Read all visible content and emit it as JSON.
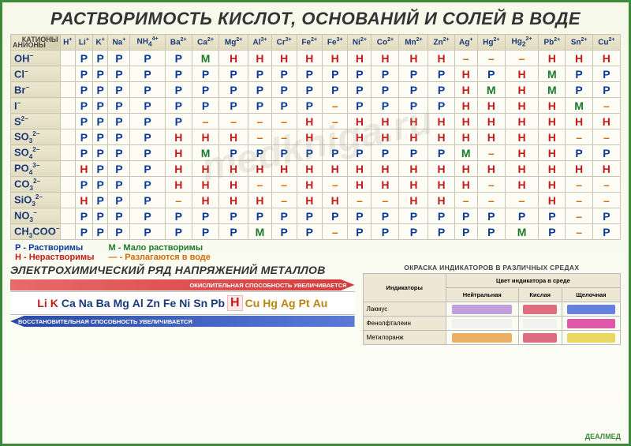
{
  "title": "РАСТВОРИМОСТЬ КИСЛОТ, ОСНОВАНИЙ И СОЛЕЙ В ВОДЕ",
  "corner": {
    "cations": "КАТИОНЫ",
    "anions": "АНИОНЫ"
  },
  "cations": [
    {
      "l": "H",
      "c": "+"
    },
    {
      "l": "Li",
      "c": "+"
    },
    {
      "l": "K",
      "c": "+"
    },
    {
      "l": "Na",
      "c": "+"
    },
    {
      "l": "NH",
      "c": "4+",
      "sub": "4"
    },
    {
      "l": "Ba",
      "c": "2+"
    },
    {
      "l": "Ca",
      "c": "2+"
    },
    {
      "l": "Mg",
      "c": "2+"
    },
    {
      "l": "Al",
      "c": "3+"
    },
    {
      "l": "Cr",
      "c": "3+"
    },
    {
      "l": "Fe",
      "c": "2+"
    },
    {
      "l": "Fe",
      "c": "3+"
    },
    {
      "l": "Ni",
      "c": "2+"
    },
    {
      "l": "Co",
      "c": "2+"
    },
    {
      "l": "Mn",
      "c": "2+"
    },
    {
      "l": "Zn",
      "c": "2+"
    },
    {
      "l": "Ag",
      "c": "+"
    },
    {
      "l": "Hg",
      "c": "2+"
    },
    {
      "l": "Hg",
      "c": "2+",
      "sub": "2"
    },
    {
      "l": "Pb",
      "c": "2+"
    },
    {
      "l": "Sn",
      "c": "2+"
    },
    {
      "l": "Cu",
      "c": "2+"
    }
  ],
  "anions": [
    {
      "l": "OH",
      "c": "−"
    },
    {
      "l": "Cl",
      "c": "−"
    },
    {
      "l": "Br",
      "c": "−"
    },
    {
      "l": "I",
      "c": "−"
    },
    {
      "l": "S",
      "c": "2−"
    },
    {
      "l": "SO",
      "sub": "3",
      "c": "2−"
    },
    {
      "l": "SO",
      "sub": "4",
      "c": "2−"
    },
    {
      "l": "PO",
      "sub": "4",
      "c": "3−"
    },
    {
      "l": "CO",
      "sub": "3",
      "c": "2−"
    },
    {
      "l": "SiO",
      "sub": "3",
      "c": "2−"
    },
    {
      "l": "NO",
      "sub": "3",
      "c": "−"
    },
    {
      "l": "CH",
      "sub": "3",
      "l2": "COO",
      "c": "−"
    }
  ],
  "grid": [
    [
      "",
      "Р",
      "Р",
      "Р",
      "Р",
      "Р",
      "М",
      "Н",
      "Н",
      "Н",
      "Н",
      "Н",
      "Н",
      "Н",
      "Н",
      "Н",
      "–",
      "–",
      "–",
      "Н",
      "Н",
      "Н"
    ],
    [
      "",
      "Р",
      "Р",
      "Р",
      "Р",
      "Р",
      "Р",
      "Р",
      "Р",
      "Р",
      "Р",
      "Р",
      "Р",
      "Р",
      "Р",
      "Р",
      "Н",
      "Р",
      "Н",
      "М",
      "Р",
      "Р"
    ],
    [
      "",
      "Р",
      "Р",
      "Р",
      "Р",
      "Р",
      "Р",
      "Р",
      "Р",
      "Р",
      "Р",
      "Р",
      "Р",
      "Р",
      "Р",
      "Р",
      "Н",
      "М",
      "Н",
      "М",
      "Р",
      "Р"
    ],
    [
      "",
      "Р",
      "Р",
      "Р",
      "Р",
      "Р",
      "Р",
      "Р",
      "Р",
      "Р",
      "Р",
      "–",
      "Р",
      "Р",
      "Р",
      "Р",
      "Н",
      "Н",
      "Н",
      "Н",
      "М",
      "–"
    ],
    [
      "",
      "Р",
      "Р",
      "Р",
      "Р",
      "Р",
      "–",
      "–",
      "–",
      "–",
      "Н",
      "–",
      "Н",
      "Н",
      "Н",
      "Н",
      "Н",
      "Н",
      "Н",
      "Н",
      "Н",
      "Н"
    ],
    [
      "",
      "Р",
      "Р",
      "Р",
      "Р",
      "Н",
      "Н",
      "Н",
      "–",
      "–",
      "Н",
      "–",
      "Н",
      "Н",
      "Н",
      "Н",
      "Н",
      "Н",
      "Н",
      "Н",
      "–",
      "–"
    ],
    [
      "",
      "Р",
      "Р",
      "Р",
      "Р",
      "Н",
      "М",
      "Р",
      "Р",
      "Р",
      "Р",
      "Р",
      "Р",
      "Р",
      "Р",
      "Р",
      "М",
      "–",
      "Н",
      "Н",
      "Р",
      "Р"
    ],
    [
      "",
      "Н",
      "Р",
      "Р",
      "Р",
      "Н",
      "Н",
      "Н",
      "Н",
      "Н",
      "Н",
      "Н",
      "Н",
      "Н",
      "Н",
      "Н",
      "Н",
      "Н",
      "Н",
      "Н",
      "Н",
      "Н"
    ],
    [
      "",
      "Р",
      "Р",
      "Р",
      "Р",
      "Н",
      "Н",
      "Н",
      "–",
      "–",
      "Н",
      "–",
      "Н",
      "Н",
      "Н",
      "Н",
      "Н",
      "–",
      "Н",
      "Н",
      "–",
      "–"
    ],
    [
      "",
      "Н",
      "Р",
      "Р",
      "Р",
      "–",
      "Н",
      "Н",
      "Н",
      "–",
      "Н",
      "Н",
      "–",
      "–",
      "Н",
      "Н",
      "–",
      "–",
      "–",
      "Н",
      "–",
      "–"
    ],
    [
      "",
      "Р",
      "Р",
      "Р",
      "Р",
      "Р",
      "Р",
      "Р",
      "Р",
      "Р",
      "Р",
      "Р",
      "Р",
      "Р",
      "Р",
      "Р",
      "Р",
      "Р",
      "Р",
      "Р",
      "–",
      "Р"
    ],
    [
      "",
      "Р",
      "Р",
      "Р",
      "Р",
      "Р",
      "Р",
      "Р",
      "М",
      "Р",
      "Р",
      "–",
      "Р",
      "Р",
      "Р",
      "Р",
      "Р",
      "Р",
      "М",
      "Р",
      "–",
      "Р"
    ]
  ],
  "legend": {
    "p": "Р - Растворимы",
    "h": "Н - Нерастворимы",
    "m": "М - Мало растворимы",
    "d": "— - Разлагаются в воде"
  },
  "activity": {
    "title": "ЭЛЕКТРОХИМИЧЕСКИЙ РЯД НАПРЯЖЕНИЙ МЕТАЛЛОВ",
    "red": "ОКИСЛИТЕЛЬНАЯ СПОСОБНОСТЬ УВЕЛИЧИВАЕТСЯ",
    "blue": "ВОССТАНОВИТЕЛЬНАЯ СПОСОБНОСТЬ УВЕЛИЧИВАЕТСЯ",
    "series": [
      {
        "t": "Li",
        "g": "a"
      },
      {
        "t": "K",
        "g": "a"
      },
      {
        "t": "Ca",
        "g": "b"
      },
      {
        "t": "Na",
        "g": "b"
      },
      {
        "t": "Ba",
        "g": "b"
      },
      {
        "t": "Mg",
        "g": "b"
      },
      {
        "t": "Al",
        "g": "b"
      },
      {
        "t": "Zn",
        "g": "b"
      },
      {
        "t": "Fe",
        "g": "b"
      },
      {
        "t": "Ni",
        "g": "b"
      },
      {
        "t": "Sn",
        "g": "b"
      },
      {
        "t": "Pb",
        "g": "b"
      },
      {
        "t": "H",
        "g": "h"
      },
      {
        "t": "Cu",
        "g": "c"
      },
      {
        "t": "Hg",
        "g": "c"
      },
      {
        "t": "Ag",
        "g": "c"
      },
      {
        "t": "Pt",
        "g": "c"
      },
      {
        "t": "Au",
        "g": "c"
      }
    ]
  },
  "indicators": {
    "title": "ОКРАСКА ИНДИКАТОРОВ В РАЗЛИЧНЫХ СРЕДАХ",
    "header1": "Индикаторы",
    "header2": "Цвет индикатора в среде",
    "cols": [
      "Нейтральная",
      "Кислая",
      "Щелочная"
    ],
    "rows": [
      {
        "name": "Лакмус",
        "colors": [
          "#b98fd9",
          "#d9536c",
          "#4a6ad9"
        ]
      },
      {
        "name": "Фенолфталеин",
        "colors": [
          "#eeeeee",
          "#eeeeee",
          "#d93a9a"
        ]
      },
      {
        "name": "Метилоранж",
        "colors": [
          "#e8a24a",
          "#d9536c",
          "#e8cf4a"
        ]
      }
    ]
  },
  "watermark": "medkniga.ru",
  "brand": "ДЕАЛМЕД"
}
